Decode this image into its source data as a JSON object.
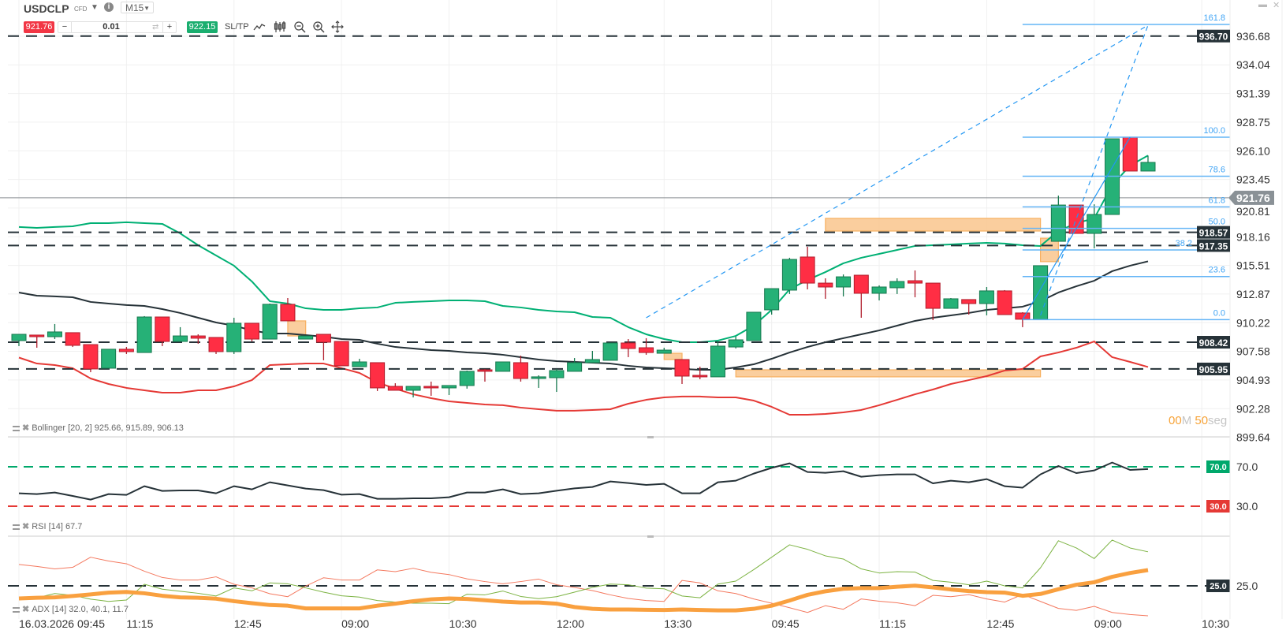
{
  "header": {
    "symbol": "USDCLP",
    "instrument_type": "CFD",
    "timeframe": "M15",
    "sell_price": "921.76",
    "quantity": "0.01",
    "buy_price": "922.15",
    "sltp_label": "SL/TP",
    "qty_minus": "−",
    "qty_plus": "+",
    "info": "i"
  },
  "toolbar_icons": [
    "line-chart-icon",
    "candlestick-icon",
    "zoom-out-icon",
    "zoom-in-icon",
    "move-icon"
  ],
  "window_controls": {
    "minimize": "▬",
    "close": "✕"
  },
  "countdown": {
    "minutes": "00",
    "m_unit": "M",
    "seconds": "50",
    "s_unit": "seg"
  },
  "indicators": {
    "bollinger_label": "Bollinger [20, 2] 925.66, 915.89, 906.13",
    "rsi_label": "RSI [14] 67.7",
    "adx_label": "ADX [14] 32.0, 40.1, 11.7"
  },
  "colors": {
    "bull": "#26b177",
    "bull_border": "#17794f",
    "bear": "#ff2e44",
    "bear_border": "#b01d2c",
    "bb_upper": "#00b074",
    "bb_middle": "#263238",
    "bb_lower": "#e53935",
    "fib": "#64b5f6",
    "zone": "#f9c58d",
    "zone_border": "#f7b060",
    "rsi_line": "#263238",
    "rsi_high": "#00a86b",
    "rsi_low": "#e53935",
    "adx": "#f9a03f",
    "plus_di": "#7cb342",
    "minus_di": "#f4795f"
  },
  "chart_data": {
    "type": "candlestick",
    "title": "",
    "x_labels": [
      {
        "index": 0,
        "label": "16.03.2026 09:45"
      },
      {
        "index": 6,
        "label": "11:15"
      },
      {
        "index": 12,
        "label": "12:45"
      },
      {
        "index": 18,
        "label": "09:00"
      },
      {
        "index": 24,
        "label": "10:30"
      },
      {
        "index": 30,
        "label": "12:00"
      },
      {
        "index": 36,
        "label": "13:30"
      },
      {
        "index": 42,
        "label": "09:45"
      },
      {
        "index": 48,
        "label": "11:15"
      },
      {
        "index": 54,
        "label": "12:45"
      },
      {
        "index": 60,
        "label": "09:00"
      },
      {
        "index": 66,
        "label": "10:30"
      }
    ],
    "y_ticks": [
      "936.68",
      "934.04",
      "931.39",
      "928.75",
      "926.10",
      "923.45",
      "920.81",
      "918.16",
      "915.51",
      "912.87",
      "910.22",
      "907.58",
      "904.93",
      "902.28",
      "899.64"
    ],
    "ylim": [
      899.64,
      940.03
    ],
    "grid": true,
    "ohlc": [
      [
        908.57,
        909.15,
        908.06,
        909.15
      ],
      [
        909.08,
        909.08,
        907.91,
        908.93
      ],
      [
        908.93,
        910.1,
        908.71,
        909.37
      ],
      [
        909.3,
        909.3,
        907.98,
        908.13
      ],
      [
        908.2,
        908.2,
        905.65,
        905.95
      ],
      [
        906.02,
        907.77,
        906.02,
        907.77
      ],
      [
        907.77,
        907.98,
        907.33,
        907.55
      ],
      [
        907.47,
        910.83,
        907.47,
        910.75
      ],
      [
        910.75,
        910.75,
        908.06,
        908.49
      ],
      [
        908.49,
        909.81,
        908.49,
        909.0
      ],
      [
        909.0,
        909.15,
        908.28,
        908.79
      ],
      [
        908.86,
        908.86,
        907.33,
        907.55
      ],
      [
        907.55,
        910.68,
        907.33,
        910.17
      ],
      [
        910.17,
        910.17,
        908.49,
        908.71
      ],
      [
        908.71,
        911.99,
        908.71,
        911.92
      ],
      [
        911.92,
        912.5,
        910.39,
        910.39
      ],
      [
        908.71,
        909.0,
        908.71,
        909.0
      ],
      [
        909.15,
        909.15,
        906.75,
        908.42
      ],
      [
        908.49,
        908.49,
        906.24,
        906.24
      ],
      [
        906.16,
        906.89,
        906.16,
        906.6
      ],
      [
        906.53,
        906.53,
        903.91,
        904.2
      ],
      [
        904.34,
        904.63,
        903.98,
        903.98
      ],
      [
        903.98,
        904.34,
        903.32,
        904.34
      ],
      [
        904.34,
        904.78,
        903.47,
        904.2
      ],
      [
        904.2,
        904.42,
        903.54,
        904.42
      ],
      [
        904.42,
        905.8,
        904.13,
        905.73
      ],
      [
        905.87,
        905.95,
        904.78,
        905.73
      ],
      [
        905.73,
        906.6,
        905.73,
        906.6
      ],
      [
        906.53,
        907.18,
        904.78,
        905.07
      ],
      [
        905.07,
        905.36,
        904.2,
        905.22
      ],
      [
        905.14,
        905.95,
        903.83,
        905.8
      ],
      [
        905.73,
        906.96,
        905.73,
        906.53
      ],
      [
        906.53,
        907.62,
        906.53,
        906.82
      ],
      [
        906.75,
        908.35,
        906.75,
        908.35
      ],
      [
        908.35,
        908.71,
        907.04,
        907.84
      ],
      [
        907.91,
        908.79,
        907.26,
        907.47
      ],
      [
        907.4,
        907.91,
        907.4,
        907.69
      ],
      [
        906.82,
        906.82,
        904.56,
        905.29
      ],
      [
        905.36,
        906.16,
        905.0,
        905.22
      ],
      [
        905.22,
        908.49,
        905.22,
        908.06
      ],
      [
        907.98,
        908.93,
        907.84,
        908.64
      ],
      [
        908.57,
        911.19,
        908.57,
        911.19
      ],
      [
        911.41,
        913.37,
        910.97,
        913.37
      ],
      [
        913.23,
        916.22,
        912.87,
        916.07
      ],
      [
        916.29,
        917.24,
        913.3,
        913.88
      ],
      [
        913.88,
        914.32,
        912.43,
        913.52
      ],
      [
        913.52,
        914.68,
        912.65,
        914.46
      ],
      [
        914.61,
        914.61,
        910.68,
        912.94
      ],
      [
        912.94,
        913.67,
        912.28,
        913.52
      ],
      [
        913.45,
        914.32,
        912.87,
        914.03
      ],
      [
        914.1,
        915.05,
        912.57,
        913.88
      ],
      [
        913.88,
        913.88,
        910.46,
        911.55
      ],
      [
        911.55,
        912.5,
        911.55,
        912.43
      ],
      [
        912.36,
        912.36,
        910.97,
        911.99
      ],
      [
        911.99,
        913.52,
        910.9,
        913.16
      ],
      [
        913.16,
        913.23,
        910.97,
        910.97
      ],
      [
        911.12,
        911.19,
        909.81,
        910.54
      ],
      [
        910.54,
        915.49,
        910.54,
        915.49
      ],
      [
        917.74,
        921.96,
        917.74,
        921.09
      ],
      [
        921.09,
        921.09,
        918.47,
        918.47
      ],
      [
        918.47,
        921.16,
        917.09,
        920.22
      ],
      [
        920.22,
        927.21,
        920.22,
        927.21
      ],
      [
        927.36,
        927.36,
        924.23,
        924.23
      ],
      [
        924.23,
        925.66,
        924.23,
        925.03
      ]
    ],
    "bollinger": {
      "upper": [
        919.06,
        918.98,
        919.06,
        919.13,
        919.42,
        919.42,
        919.5,
        919.42,
        919.35,
        918.47,
        917.38,
        916.43,
        915.49,
        914.03,
        912.21,
        911.99,
        911.55,
        911.41,
        911.41,
        911.55,
        911.63,
        912.06,
        912.14,
        912.21,
        912.28,
        912.28,
        912.21,
        911.77,
        911.63,
        911.41,
        911.26,
        911.19,
        910.75,
        910.68,
        909.81,
        909.15,
        908.71,
        908.42,
        908.42,
        908.57,
        909.0,
        909.95,
        911.41,
        913.3,
        914.17,
        914.9,
        915.71,
        916.22,
        916.58,
        916.94,
        917.31,
        917.38,
        917.45,
        917.53,
        917.6,
        917.53,
        917.38,
        917.31,
        918.69,
        919.42,
        919.86,
        922.92,
        924.74,
        925.66
      ],
      "middle": [
        913.01,
        912.72,
        912.65,
        912.57,
        912.14,
        911.99,
        911.85,
        911.77,
        911.48,
        911.12,
        910.68,
        910.24,
        909.95,
        909.51,
        909.22,
        909.22,
        909.08,
        908.93,
        908.71,
        908.64,
        908.28,
        907.98,
        907.84,
        907.69,
        907.62,
        907.47,
        907.4,
        907.26,
        907.04,
        906.82,
        906.67,
        906.6,
        906.53,
        906.45,
        906.24,
        906.09,
        906.02,
        905.95,
        905.87,
        905.87,
        906.09,
        906.38,
        906.89,
        907.47,
        907.98,
        908.42,
        908.79,
        909.15,
        909.51,
        909.95,
        910.39,
        910.68,
        910.9,
        911.12,
        911.41,
        911.55,
        911.7,
        912.21,
        913.01,
        913.59,
        914.1,
        914.98,
        915.49,
        915.89
      ],
      "lower": [
        907.0,
        906.45,
        906.31,
        906.02,
        905.07,
        904.56,
        904.2,
        903.98,
        903.76,
        903.76,
        903.98,
        903.98,
        904.34,
        904.92,
        906.31,
        906.38,
        906.45,
        906.45,
        906.02,
        905.58,
        904.71,
        904.13,
        903.61,
        903.25,
        902.96,
        902.81,
        902.67,
        902.6,
        902.38,
        902.23,
        902.09,
        902.09,
        902.16,
        902.23,
        902.74,
        903.1,
        903.32,
        903.4,
        903.4,
        903.32,
        903.32,
        903.03,
        902.45,
        901.72,
        901.72,
        901.79,
        901.94,
        902.16,
        902.6,
        903.1,
        903.61,
        904.05,
        904.56,
        904.92,
        905.29,
        905.8,
        905.95,
        907.11,
        907.47,
        907.91,
        908.49,
        907.04,
        906.6,
        906.13
      ]
    },
    "current_price": {
      "value": 921.76,
      "label": "921.76"
    },
    "price_lines": [
      {
        "value": 936.7,
        "label": "936.70"
      },
      {
        "value": 918.57,
        "label": "918.57"
      },
      {
        "value": 917.35,
        "label": "917.35"
      },
      {
        "value": 908.42,
        "label": "908.42"
      },
      {
        "value": 905.95,
        "label": "905.95"
      }
    ],
    "zones": [
      {
        "from": 15,
        "to": 16,
        "top": 910.39,
        "bottom": 909.0
      },
      {
        "from": 36,
        "to": 37,
        "top": 907.4,
        "bottom": 906.82
      },
      {
        "from": 40,
        "to": 57,
        "top": 905.87,
        "bottom": 905.22
      },
      {
        "from": 45,
        "to": 57,
        "top": 919.86,
        "bottom": 918.69
      },
      {
        "from": 57,
        "to": 58,
        "top": 918.03,
        "bottom": 915.86
      }
    ],
    "fibonacci": {
      "from_index": 56,
      "low": 910.51,
      "to_index": 62,
      "high": 927.36,
      "levels": [
        {
          "ratio": 1.618,
          "label": "161.8"
        },
        {
          "ratio": 1.0,
          "label": "100.0"
        },
        {
          "ratio": 0.786,
          "label": "78.6"
        },
        {
          "ratio": 0.618,
          "label": "61.8"
        },
        {
          "ratio": 0.5,
          "label": "50.0"
        },
        {
          "ratio": 0.382,
          "label": "38.2"
        },
        {
          "ratio": 0.236,
          "label": "23.6"
        },
        {
          "ratio": 0.0,
          "label": "0.0"
        }
      ]
    },
    "trend_lines": [
      {
        "style": "dashed",
        "from_index": 35,
        "from_price": 910.68,
        "to_index": 63,
        "to_price": 937.7
      },
      {
        "style": "dashed",
        "from_index": 57,
        "from_price": 910.9,
        "to_index": 63,
        "to_price": 937.7
      },
      {
        "style": "solid",
        "from_index": 56,
        "from_price": 910.51,
        "to_index": 62,
        "to_price": 927.36
      }
    ],
    "rsi": {
      "levels": [
        {
          "value": 70,
          "label": "70.0"
        },
        {
          "value": 30,
          "label": "30.0"
        }
      ],
      "values": [
        43.1,
        42.3,
        43.9,
        40.4,
        36.7,
        42.3,
        41.5,
        50.3,
        45.5,
        46.0,
        46.0,
        43.1,
        50.3,
        47.1,
        54.3,
        51.1,
        47.9,
        46.3,
        41.7,
        42.3,
        37.5,
        37.5,
        38.0,
        38.0,
        39.1,
        43.9,
        43.9,
        47.1,
        42.3,
        43.1,
        45.7,
        48.1,
        49.5,
        55.1,
        53.5,
        51.6,
        52.7,
        43.1,
        43.1,
        54.3,
        55.9,
        63.1,
        68.9,
        73.5,
        64.7,
        63.9,
        65.5,
        59.9,
        61.5,
        62.3,
        62.3,
        53.2,
        55.9,
        54.3,
        57.5,
        50.3,
        48.8,
        62.3,
        70.8,
        63.6,
        66.3,
        74.3,
        66.8,
        67.7
      ]
    },
    "adx": {
      "level": {
        "value": 25,
        "label": "25.0"
      },
      "adx": [
        19.4,
        19.7,
        19.9,
        20.5,
        21.2,
        22.0,
        22.3,
        21.7,
        20.6,
        19.9,
        19.7,
        19.3,
        18.2,
        17.3,
        16.5,
        16.2,
        15.0,
        15.0,
        15.0,
        15.0,
        16.2,
        17.1,
        18.2,
        19.0,
        19.4,
        19.2,
        18.6,
        18.0,
        17.6,
        17.6,
        17.1,
        15.6,
        14.8,
        14.5,
        14.5,
        14.4,
        14.3,
        14.5,
        14.3,
        14.1,
        14.1,
        14.8,
        16.2,
        18.5,
        21.0,
        22.6,
        23.7,
        24.0,
        24.0,
        24.6,
        25.1,
        24.3,
        23.4,
        22.7,
        22.2,
        22.0,
        20.6,
        21.4,
        23.5,
        25.5,
        26.6,
        29.0,
        30.7,
        32.0
      ],
      "plus_di": [
        19.9,
        19.7,
        21.6,
        20.8,
        19.1,
        18.1,
        18.7,
        25.7,
        23.5,
        22.6,
        21.7,
        20.5,
        24.1,
        22.8,
        26.3,
        25.9,
        24.1,
        22.2,
        20.6,
        20.0,
        18.5,
        17.8,
        17.3,
        17.3,
        17.1,
        21.3,
        21.0,
        22.7,
        20.3,
        19.3,
        20.2,
        22.2,
        24.3,
        25.8,
        25.5,
        24.0,
        23.7,
        20.5,
        19.7,
        25.8,
        27.1,
        32.2,
        37.7,
        43.2,
        41.2,
        38.3,
        36.9,
        32.5,
        30.7,
        31.3,
        31.1,
        27.4,
        26.6,
        25.5,
        27.1,
        25.0,
        24.1,
        33.0,
        45.0,
        41.8,
        37.1,
        45.3,
        41.8,
        40.1
      ],
      "minus_di": [
        34.5,
        33.6,
        32.5,
        33.2,
        37.7,
        36.0,
        34.8,
        31.5,
        28.7,
        27.6,
        27.6,
        29.0,
        25.7,
        24.1,
        21.5,
        20.2,
        24.9,
        28.6,
        27.6,
        27.6,
        32.1,
        31.3,
        32.8,
        31.0,
        30.0,
        28.1,
        26.9,
        25.9,
        26.9,
        28.0,
        25.5,
        24.3,
        22.9,
        21.0,
        19.4,
        18.5,
        18.1,
        27.4,
        26.3,
        22.8,
        21.6,
        19.2,
        17.3,
        15.3,
        13.2,
        16.2,
        14.6,
        19.2,
        18.2,
        17.5,
        16.2,
        20.8,
        20.2,
        21.1,
        19.2,
        17.8,
        21.2,
        18.1,
        15.0,
        14.1,
        15.9,
        13.2,
        12.3,
        11.7
      ]
    }
  }
}
